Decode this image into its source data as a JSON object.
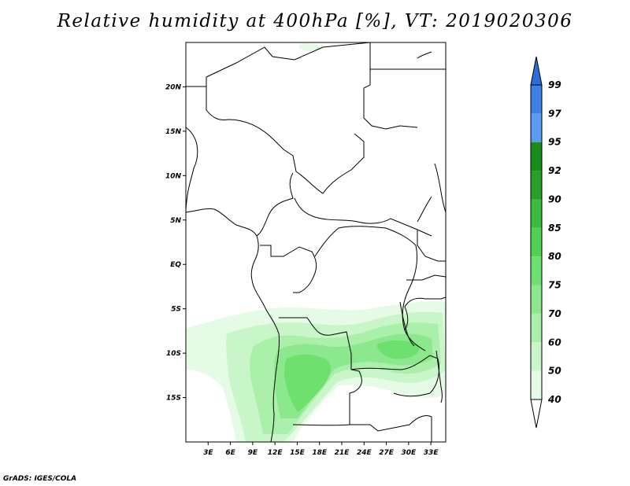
{
  "title": "Relative humidity at 400hPa [%], VT: 2019020306",
  "credit": "GrADS: IGES/COLA",
  "map": {
    "lon_range": [
      0,
      35
    ],
    "lat_range": [
      -20,
      25
    ],
    "lat_ticks": [
      {
        "value": 20,
        "label": "20N"
      },
      {
        "value": 15,
        "label": "15N"
      },
      {
        "value": 10,
        "label": "10N"
      },
      {
        "value": 5,
        "label": "5N"
      },
      {
        "value": 0,
        "label": "EQ"
      },
      {
        "value": -5,
        "label": "5S"
      },
      {
        "value": -10,
        "label": "10S"
      },
      {
        "value": -15,
        "label": "15S"
      }
    ],
    "lon_ticks": [
      {
        "value": 3,
        "label": "3E"
      },
      {
        "value": 6,
        "label": "6E"
      },
      {
        "value": 9,
        "label": "9E"
      },
      {
        "value": 12,
        "label": "12E"
      },
      {
        "value": 15,
        "label": "15E"
      },
      {
        "value": 18,
        "label": "18E"
      },
      {
        "value": 21,
        "label": "21E"
      },
      {
        "value": 24,
        "label": "24E"
      },
      {
        "value": 27,
        "label": "27E"
      },
      {
        "value": 30,
        "label": "30E"
      },
      {
        "value": 33,
        "label": "33E"
      }
    ]
  },
  "colorbar": {
    "levels": [
      "99",
      "97",
      "95",
      "92",
      "90",
      "85",
      "80",
      "75",
      "70",
      "60",
      "50",
      "40"
    ],
    "colors": [
      "#2a6ed8",
      "#3c82e6",
      "#5a9cf0",
      "#1a8c1a",
      "#28a028",
      "#3cbc3c",
      "#50d250",
      "#6ee06e",
      "#8ce88c",
      "#aaf0aa",
      "#c8f6c8",
      "#e6fbe6",
      "#ffffff"
    ]
  }
}
